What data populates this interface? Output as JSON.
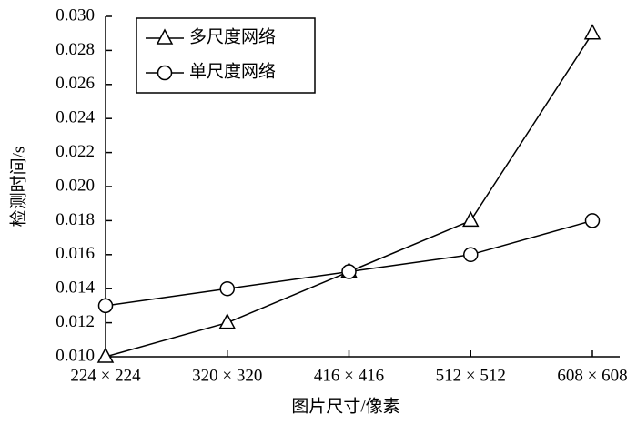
{
  "chart_data": {
    "type": "line",
    "categories": [
      "224 × 224",
      "320 × 320",
      "416 × 416",
      "512 × 512",
      "608 × 608"
    ],
    "series": [
      {
        "name": "多尺度网络",
        "color": "#000000",
        "marker": "triangle",
        "values": [
          0.01,
          0.012,
          0.015,
          0.018,
          0.029
        ]
      },
      {
        "name": "单尺度网络",
        "color": "#000000",
        "marker": "circle",
        "values": [
          0.013,
          0.014,
          0.015,
          0.016,
          0.018
        ]
      }
    ],
    "x_label": "图片尺寸/像素",
    "y_label": "检测时间/s",
    "ylim": [
      0.01,
      0.03
    ],
    "yticks": [
      {
        "value": 0.01,
        "label": "0.010"
      },
      0.012,
      0.014,
      0.016,
      0.018,
      {
        "value": 0.02,
        "label": "0.020"
      },
      0.022,
      0.024,
      0.026,
      0.028,
      {
        "value": 0.03,
        "label": "0.030"
      }
    ],
    "legend": "upper left"
  }
}
